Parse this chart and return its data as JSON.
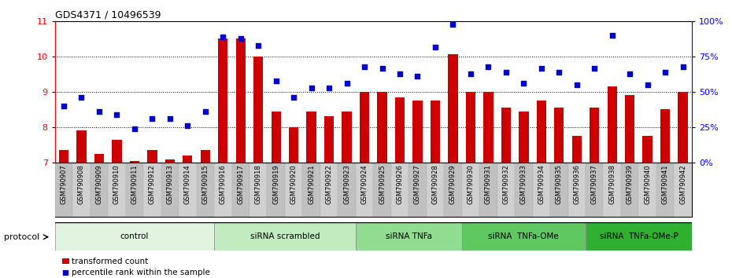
{
  "title": "GDS4371 / 10496539",
  "samples": [
    "GSM790907",
    "GSM790908",
    "GSM790909",
    "GSM790910",
    "GSM790911",
    "GSM790912",
    "GSM790913",
    "GSM790914",
    "GSM790915",
    "GSM790916",
    "GSM790917",
    "GSM790918",
    "GSM790919",
    "GSM790920",
    "GSM790921",
    "GSM790922",
    "GSM790923",
    "GSM790924",
    "GSM790925",
    "GSM790926",
    "GSM790927",
    "GSM790928",
    "GSM790929",
    "GSM790930",
    "GSM790931",
    "GSM790932",
    "GSM790933",
    "GSM790934",
    "GSM790935",
    "GSM790936",
    "GSM790937",
    "GSM790938",
    "GSM790939",
    "GSM790940",
    "GSM790941",
    "GSM790942"
  ],
  "bar_values": [
    7.35,
    7.9,
    7.25,
    7.65,
    7.05,
    7.35,
    7.1,
    7.2,
    7.35,
    10.5,
    10.5,
    10.0,
    8.45,
    8.0,
    8.45,
    8.3,
    8.45,
    9.0,
    9.0,
    8.85,
    8.75,
    8.75,
    10.05,
    9.0,
    9.0,
    8.55,
    8.45,
    8.75,
    8.55,
    7.75,
    8.55,
    9.15,
    8.9,
    7.75,
    8.5,
    9.0
  ],
  "dot_values": [
    8.6,
    8.85,
    8.45,
    8.35,
    7.95,
    8.25,
    8.25,
    8.05,
    8.45,
    10.55,
    10.5,
    10.3,
    9.3,
    8.85,
    9.1,
    9.1,
    9.25,
    9.7,
    9.65,
    9.5,
    9.45,
    10.25,
    10.9,
    9.5,
    9.7,
    9.55,
    9.25,
    9.65,
    9.55,
    9.2,
    9.65,
    10.6,
    9.5,
    9.2,
    9.55,
    9.7
  ],
  "groups": [
    {
      "label": "control",
      "start": 0,
      "end": 8,
      "color": "#e0f4e0"
    },
    {
      "label": "siRNA scrambled",
      "start": 9,
      "end": 16,
      "color": "#c0ecc0"
    },
    {
      "label": "siRNA TNFa",
      "start": 17,
      "end": 22,
      "color": "#90dc90"
    },
    {
      "label": "siRNA  TNFa-OMe",
      "start": 23,
      "end": 29,
      "color": "#60c860"
    },
    {
      "label": "siRNA  TNFa-OMe-P",
      "start": 30,
      "end": 35,
      "color": "#30b030"
    }
  ],
  "ylim_left": [
    7,
    11
  ],
  "yticks_left": [
    7,
    8,
    9,
    10,
    11
  ],
  "yticks_right_labels": [
    "0%",
    "25%",
    "50%",
    "75%",
    "100%"
  ],
  "bar_color": "#cc0000",
  "dot_color": "#0000cc",
  "protocol_label": "protocol",
  "legend_bar": "transformed count",
  "legend_dot": "percentile rank within the sample"
}
